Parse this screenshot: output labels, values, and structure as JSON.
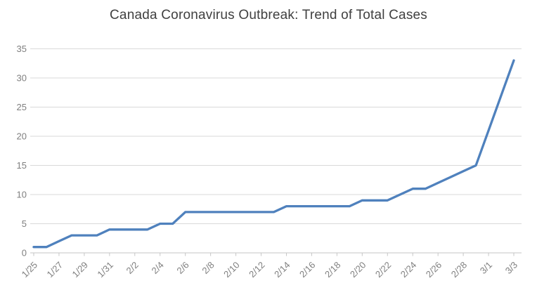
{
  "chart_data": {
    "type": "line",
    "title": "Canada Coronavirus Outbreak: Trend of Total Cases",
    "categories": [
      "1/25",
      "1/26",
      "1/27",
      "1/28",
      "1/29",
      "1/30",
      "1/31",
      "2/1",
      "2/2",
      "2/3",
      "2/4",
      "2/5",
      "2/6",
      "2/7",
      "2/8",
      "2/9",
      "2/10",
      "2/11",
      "2/12",
      "2/13",
      "2/14",
      "2/15",
      "2/16",
      "2/17",
      "2/18",
      "2/19",
      "2/20",
      "2/21",
      "2/22",
      "2/23",
      "2/24",
      "2/25",
      "2/26",
      "2/27",
      "2/28",
      "2/29",
      "3/1",
      "3/2",
      "3/3"
    ],
    "values": [
      1,
      1,
      2,
      3,
      3,
      3,
      4,
      4,
      4,
      4,
      5,
      5,
      7,
      7,
      7,
      7,
      7,
      7,
      7,
      7,
      8,
      8,
      8,
      8,
      8,
      8,
      9,
      9,
      9,
      10,
      11,
      11,
      12,
      13,
      14,
      15,
      21,
      27,
      33
    ],
    "x_tick_step": 2,
    "x_tick_labels": [
      "1/25",
      "1/27",
      "1/29",
      "1/31",
      "2/2",
      "2/4",
      "2/6",
      "2/8",
      "2/10",
      "2/12",
      "2/14",
      "2/16",
      "2/18",
      "2/20",
      "2/22",
      "2/24",
      "2/26",
      "2/28",
      "3/1",
      "3/3"
    ],
    "y_ticks": [
      0,
      5,
      10,
      15,
      20,
      25,
      30,
      35
    ],
    "ylim": [
      0,
      35
    ],
    "grid": true,
    "legend": "none",
    "xlabel": "",
    "ylabel": "",
    "colors": {
      "line": "#4f81bd",
      "grid": "#d9d9d9",
      "axis": "#c6c6c6",
      "tick_labels": "#7f7f7f",
      "title": "#404040"
    }
  }
}
